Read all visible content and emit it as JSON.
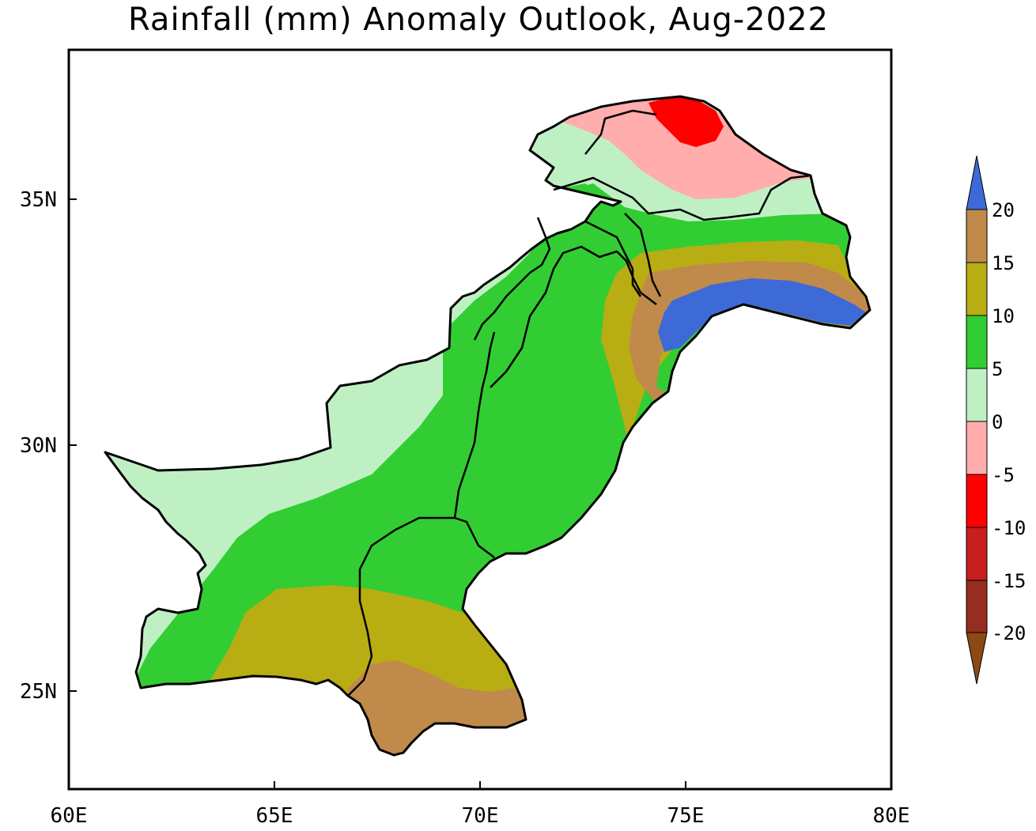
{
  "title": "Rainfall (mm) Anomaly Outlook, Aug-2022",
  "map": {
    "x_ticks": [
      "60E",
      "65E",
      "70E",
      "75E",
      "80E"
    ],
    "y_ticks": [
      "35N",
      "30N",
      "25N"
    ],
    "lon_range": [
      60,
      80
    ],
    "lat_range": [
      23,
      38
    ],
    "regions": [
      {
        "name": "north-pink-zone",
        "category": "0 to -5"
      },
      {
        "name": "north-red-zone",
        "category": "-5 to -10"
      },
      {
        "name": "balochistan-light-green",
        "category": "0 to 5"
      },
      {
        "name": "central-green",
        "category": "5 to 10"
      },
      {
        "name": "south-olive",
        "category": "10 to 15"
      },
      {
        "name": "sindh-brown",
        "category": "15 to 20"
      },
      {
        "name": "east-olive-band",
        "category": "10 to 15"
      },
      {
        "name": "kashmir-blue",
        "category": ">20"
      }
    ]
  },
  "colorbar": {
    "levels": [
      "20",
      "15",
      "10",
      "5",
      "0",
      "-5",
      "-10",
      "-15",
      "-20"
    ],
    "colors": {
      "above_20": "#3d6ad6",
      "15_20": "#c08a4a",
      "10_15": "#b9ad14",
      "5_10": "#32cd32",
      "0_5": "#bff0c4",
      "m5_0": "#ffadad",
      "m10_m5": "#ff0000",
      "m15_m10": "#c81e1e",
      "m20_m15": "#962d23",
      "below_m20": "#8b4a13"
    }
  }
}
